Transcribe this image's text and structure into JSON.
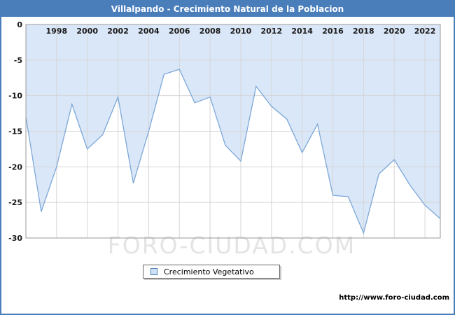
{
  "title_bar": {
    "title": "Villalpando - Crecimiento Natural de la Poblacion"
  },
  "watermark": {
    "text": "FORO-CIUDAD.COM"
  },
  "legend": {
    "label": "Crecimiento Vegetativo"
  },
  "footer": {
    "url": "http://www.foro-ciudad.com"
  },
  "chart_data": {
    "type": "area",
    "title": "Villalpando - Crecimiento Natural de la Poblacion",
    "x": [
      1996,
      1997,
      1998,
      1999,
      2000,
      2001,
      2002,
      2003,
      2004,
      2005,
      2006,
      2007,
      2008,
      2009,
      2010,
      2011,
      2012,
      2013,
      2014,
      2015,
      2016,
      2017,
      2018,
      2019,
      2020,
      2021,
      2022,
      2023
    ],
    "series": [
      {
        "name": "Crecimiento Vegetativo",
        "values": [
          -13,
          -26.3,
          -20,
          -11.2,
          -17.5,
          -15.5,
          -10.2,
          -22.3,
          -15,
          -7,
          -6.3,
          -11,
          -10.2,
          -17,
          -19.2,
          -8.7,
          -11.5,
          -13.3,
          -18,
          -14,
          -24,
          -24.2,
          -29.3,
          -21,
          -19,
          -22.5,
          -25.4,
          -27.3
        ]
      }
    ],
    "xlabel": "",
    "ylabel": "",
    "ylim": [
      -30,
      0
    ],
    "yticks": [
      0,
      -5,
      -10,
      -15,
      -20,
      -25,
      -30
    ],
    "xticks": [
      1998,
      2000,
      2002,
      2004,
      2006,
      2008,
      2010,
      2012,
      2014,
      2016,
      2018,
      2020,
      2022
    ],
    "grid": true,
    "legend_position": "bottom",
    "colors": {
      "fill": "#d9e7f8",
      "line": "#7da7d8",
      "grid": "#d6d6d6",
      "axis": "#9a9a9a",
      "title_bg": "#4a7ebb",
      "tick_text": "#1a1a1a"
    }
  }
}
